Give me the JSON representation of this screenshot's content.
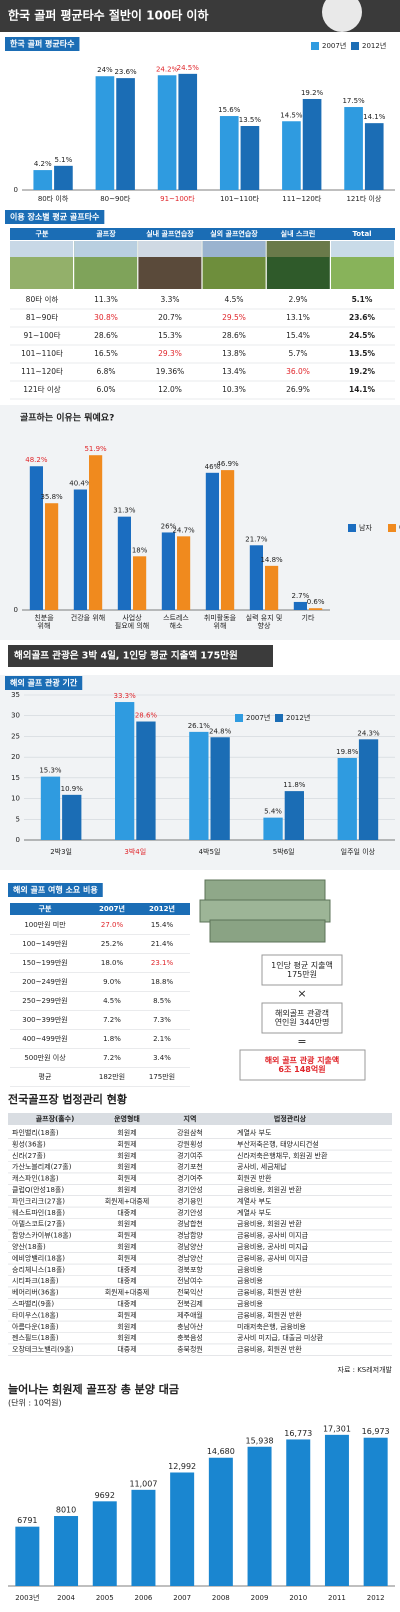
{
  "header": {
    "title": "한국 골퍼 평균타수 절반이 100타 이하"
  },
  "chart_data": [
    {
      "type": "bar",
      "title": "한국 골퍼 평균타수",
      "categories": [
        "80타 이하",
        "80~90타",
        "91~100타",
        "101~110타",
        "111~120타",
        "121타 이상"
      ],
      "series": [
        {
          "name": "2007년",
          "color": "#2f9be0",
          "values": [
            4.2,
            24,
            24.2,
            15.6,
            14.5,
            17.5
          ],
          "value_labels": [
            "4.2%",
            "24%",
            "24.2%",
            "15.6%",
            "14.5%",
            "17.5%"
          ]
        },
        {
          "name": "2012년",
          "color": "#1b6db5",
          "values": [
            5.1,
            23.6,
            24.5,
            13.5,
            19.2,
            14.1
          ],
          "value_labels": [
            "5.1%",
            "23.6%",
            "24.5%",
            "13.5%",
            "19.2%",
            "14.1%"
          ]
        }
      ],
      "ylim": [
        0,
        27
      ],
      "yticks": [
        0
      ],
      "grid": false,
      "legend": "top-right",
      "highlight_color": "#e0262b"
    },
    {
      "type": "bar",
      "title": "골프하는 이유는 뭐예요?",
      "categories": [
        "친분을\n위해",
        "건강을 위해",
        "사업상\n필요에 의해",
        "스트레스\n해소",
        "취미활동을\n위해",
        "실력 유지 및\n향상",
        "기타"
      ],
      "series": [
        {
          "name": "남자",
          "color": "#1b6dc0",
          "values": [
            48.2,
            40.4,
            31.3,
            26,
            46,
            21.7,
            2.7
          ],
          "value_labels": [
            "48.2%",
            "40.4%",
            "31.3%",
            "26%",
            "46%",
            "21.7%",
            "2.7%"
          ]
        },
        {
          "name": "여자",
          "color": "#f08a1e",
          "values": [
            35.8,
            51.9,
            18,
            24.7,
            46.9,
            14.8,
            0.6
          ],
          "value_labels": [
            "35.8%",
            "51.9%",
            "18%",
            "24.7%",
            "46.9%",
            "14.8%",
            "0.6%"
          ]
        }
      ],
      "ylim": [
        0,
        57
      ],
      "yticks": [
        0
      ],
      "grid": false,
      "legend": "right",
      "highlight_color": "#e0262b"
    },
    {
      "type": "bar",
      "title": "해외 골프 관광 기간",
      "categories": [
        "2박3일",
        "3박4일",
        "4박5일",
        "5박6일",
        "일주일 이상"
      ],
      "series": [
        {
          "name": "2007년",
          "color": "#2f9be0",
          "values": [
            15.3,
            33.3,
            26.1,
            5.4,
            19.8
          ],
          "value_labels": [
            "15.3%",
            "33.3%",
            "26.1%",
            "5.4%",
            "19.8%"
          ]
        },
        {
          "name": "2012년",
          "color": "#1b6db5",
          "values": [
            10.9,
            28.6,
            24.8,
            11.8,
            24.3
          ],
          "value_labels": [
            "10.9%",
            "28.6%",
            "24.8%",
            "11.8%",
            "24.3%"
          ]
        }
      ],
      "ylim": [
        0,
        35
      ],
      "yticks": [
        0,
        5,
        10,
        15,
        20,
        25,
        30,
        35
      ],
      "grid": true,
      "legend": "top",
      "highlight_color": "#e0262b"
    },
    {
      "type": "bar",
      "title": "늘어나는 회원제 골프장 총 분양 대금",
      "subtitle": "(단위 : 10억원)",
      "categories": [
        "2003년",
        "2004",
        "2005",
        "2006",
        "2007",
        "2008",
        "2009",
        "2010",
        "2011",
        "2012"
      ],
      "series": [
        {
          "color": "#1a86d0",
          "values": [
            6791,
            8010,
            9692,
            11007,
            12992,
            14680,
            15938,
            16773,
            17301,
            16973
          ],
          "value_labels": [
            "6791",
            "8010",
            "9692",
            "11,007",
            "12,992",
            "14,680",
            "15,938",
            "16,773",
            "17,301",
            "16,973"
          ]
        }
      ],
      "ylim": [
        0,
        19000
      ],
      "grid": false
    }
  ],
  "place_table": {
    "title": "이용 장소별 평균 골프타수",
    "header": [
      "구분",
      "골프장",
      "실내 골프연습장",
      "실외 골프연습장",
      "실내 스크린",
      "Total"
    ],
    "rows": [
      [
        "80타 이하",
        "11.3%",
        "3.3%",
        "4.5%",
        "2.9%",
        "5.1%"
      ],
      [
        "81~90타",
        "30.8%",
        "20.7%",
        "29.5%",
        "13.1%",
        "23.6%"
      ],
      [
        "91~100타",
        "28.6%",
        "15.3%",
        "28.6%",
        "15.4%",
        "24.5%"
      ],
      [
        "101~110타",
        "16.5%",
        "29.3%",
        "13.8%",
        "5.7%",
        "13.5%"
      ],
      [
        "111~120타",
        "6.8%",
        "19.36%",
        "13.4%",
        "36.0%",
        "19.2%"
      ],
      [
        "121타 이상",
        "6.0%",
        "12.0%",
        "10.3%",
        "26.9%",
        "14.1%"
      ]
    ]
  },
  "overseas": {
    "title": "해외골프 관광은 3박 4일, 1인당 평균 지출액 175만원"
  },
  "cost_table": {
    "title": "해외 골프 여행 소요 비용",
    "header": [
      "구분",
      "2007년",
      "2012년"
    ],
    "rows": [
      [
        "100만원 미만",
        "27.0%",
        "15.4%"
      ],
      [
        "100~149만원",
        "25.2%",
        "21.4%"
      ],
      [
        "150~199만원",
        "18.0%",
        "23.1%"
      ],
      [
        "200~249만원",
        "9.0%",
        "18.8%"
      ],
      [
        "250~299만원",
        "4.5%",
        "8.5%"
      ],
      [
        "300~399만원",
        "7.2%",
        "7.3%"
      ],
      [
        "400~499만원",
        "1.8%",
        "2.1%"
      ],
      [
        "500만원 이상",
        "7.2%",
        "3.4%"
      ],
      [
        "평균",
        "182만원",
        "175만원"
      ]
    ]
  },
  "spend": {
    "box1": "1인당 평균 지출액\n175만원",
    "op1": "×",
    "box2": "해외골프 관광객\n연인원 344만명",
    "op2": "=",
    "box3": "해외 골프 관광 지출액\n6조 148억원"
  },
  "court_table": {
    "title": "전국골프장 법정관리 현황",
    "header": [
      "골프장(홀수)",
      "운영형태",
      "지역",
      "법정관리상"
    ],
    "rows": [
      [
        "파인밸리(18홀)",
        "회원제",
        "강원삼척",
        "계열사 부도"
      ],
      [
        "횡성(36홀)",
        "회원제",
        "강원횡성",
        "부산저축은행, 태양시티건설"
      ],
      [
        "신라(27홀)",
        "회원제",
        "경기여주",
        "신라저축은행채무, 회원권 반환"
      ],
      [
        "가산노블리제(27홀)",
        "회원제",
        "경기포천",
        "공사비, 세금체납"
      ],
      [
        "캐스파인(18홀)",
        "회원제",
        "경기여주",
        "회원권 반환"
      ],
      [
        "클럽Q(안성18홀)",
        "회원제",
        "경기안성",
        "금융비용, 회원권 반환"
      ],
      [
        "파인크리크(27홀)",
        "회원제+대중제",
        "경기용인",
        "계열사 부도"
      ],
      [
        "웨스트파인(18홀)",
        "대중제",
        "경기안성",
        "계열사 부도"
      ],
      [
        "아델스코트(27홀)",
        "회원제",
        "경남합천",
        "금융비용, 회원권 반환"
      ],
      [
        "함양스카이뷰(18홀)",
        "회원제",
        "경남함양",
        "금융비용, 공사비 미지급"
      ],
      [
        "양산(18홀)",
        "회원제",
        "경남양산",
        "금융비용, 공사비 미지급"
      ],
      [
        "에비앙밸리(18홀)",
        "회원제",
        "경남양산",
        "금융비용, 공사비 미지급"
      ],
      [
        "승리체니스(18홀)",
        "대중제",
        "경북포항",
        "금융비용"
      ],
      [
        "시티파크(18홀)",
        "대중제",
        "전남여수",
        "금융비용"
      ],
      [
        "베어리버(36홀)",
        "회원제+대중제",
        "전북익산",
        "금융비용, 회원권 반환"
      ],
      [
        "스파밸리(9홀)",
        "대중제",
        "전북김제",
        "금융비용"
      ],
      [
        "타미우스(18홀)",
        "회원제",
        "제주애월",
        "금융비용, 회원권 반환"
      ],
      [
        "아름다운(18홀)",
        "회원제",
        "충남아산",
        "미래저축은행, 금융비용"
      ],
      [
        "젠스필드(18홀)",
        "회원제",
        "충북음성",
        "공사비 미지급, 대출금 미상환"
      ],
      [
        "오창테크노밸리(9홀)",
        "대중제",
        "충북청원",
        "금융비용, 회원권 반환"
      ]
    ],
    "source": "자료 : KS레저개발"
  }
}
